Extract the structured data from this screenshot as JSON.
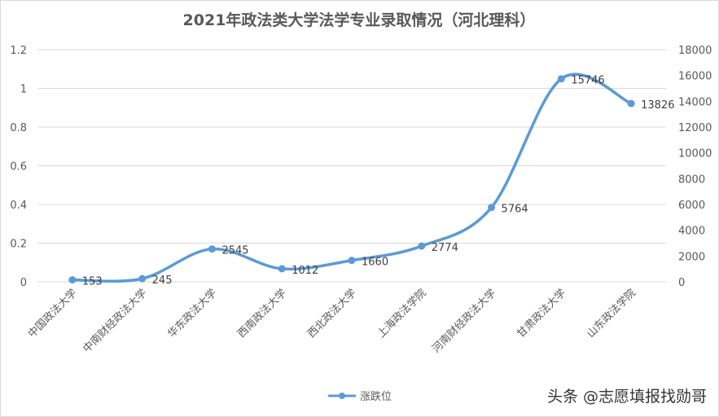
{
  "chart_data": {
    "type": "line",
    "title": "2021年政法类大学法学专业录取情况（河北理科）",
    "categories": [
      "中国政法大学",
      "中南财经政法大学",
      "华东政法大学",
      "西南政法大学",
      "西北政法大学",
      "上海政法学院",
      "河南财经政法大学",
      "甘肃政法大学",
      "山东政法学院"
    ],
    "series": [
      {
        "name": "涨跌位",
        "values": [
          153,
          245,
          2545,
          1012,
          1660,
          2774,
          5764,
          15746,
          13826
        ],
        "color": "#5B9BD5"
      }
    ],
    "y_left": {
      "ylim": [
        0,
        1.2
      ],
      "ticks": [
        "0",
        "0.2",
        "0.4",
        "0.6",
        "0.8",
        "1",
        "1.2"
      ]
    },
    "y_right": {
      "ylim": [
        0,
        18000
      ],
      "ticks": [
        "0",
        "2000",
        "4000",
        "6000",
        "8000",
        "10000",
        "12000",
        "14000",
        "16000",
        "18000"
      ]
    },
    "grid": true,
    "legend_position": "bottom"
  },
  "watermark": "头条 @志愿填报找勋哥"
}
